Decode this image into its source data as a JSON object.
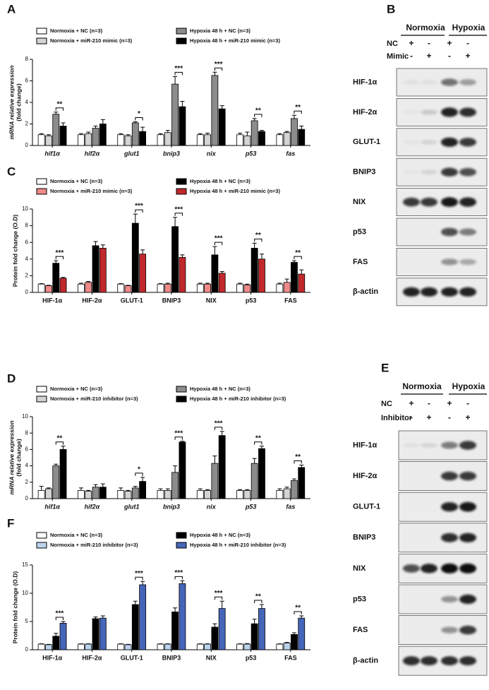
{
  "chart_data": [
    {
      "type": "bar",
      "panel": "A",
      "y_label": [
        "mRNA relative expression",
        "(fold change)"
      ],
      "categories": [
        "hif1α",
        "hif2α",
        "glut1",
        "bnip3",
        "nix",
        "p53",
        "fas"
      ],
      "series": [
        {
          "name": "Normoxia + NC (n=3)",
          "color": "#ffffff",
          "values": [
            1.0,
            1.0,
            1.0,
            1.0,
            1.0,
            1.0,
            1.0
          ],
          "errors": [
            0.1,
            0.1,
            0.1,
            0.1,
            0.1,
            0.15,
            0.1
          ]
        },
        {
          "name": "Normoxia + miR-210 mimic (n=3)",
          "color": "#d4d4d4",
          "values": [
            0.9,
            1.1,
            0.9,
            1.2,
            1.0,
            0.9,
            1.2
          ],
          "errors": [
            0.1,
            0.15,
            0.1,
            0.2,
            0.15,
            0.35,
            0.1
          ]
        },
        {
          "name": "Hypoxia 48 h + NC (n=3)",
          "color": "#8c8c8c",
          "values": [
            2.9,
            1.6,
            2.1,
            5.7,
            6.5,
            2.3,
            2.5
          ],
          "errors": [
            0.2,
            0.2,
            0.1,
            0.7,
            0.3,
            0.2,
            0.3
          ]
        },
        {
          "name": "Hypoxia 48 h + miR-210 mimic (n=3)",
          "color": "#000000",
          "values": [
            1.8,
            2.0,
            1.3,
            3.6,
            3.4,
            1.3,
            1.5
          ],
          "errors": [
            0.3,
            0.4,
            0.4,
            0.5,
            0.3,
            0.1,
            0.3
          ]
        }
      ],
      "significance": [
        "**",
        null,
        "*",
        "***",
        "***",
        "**",
        "**"
      ],
      "ylim": [
        0,
        8
      ],
      "yticks": [
        0,
        2,
        4,
        6,
        8
      ]
    },
    {
      "type": "bar",
      "panel": "C",
      "y_label": [
        "Protein fold change (O.D)"
      ],
      "categories": [
        "HIF-1α",
        "HIF-2α",
        "GLUT-1",
        "BNIP3",
        "NIX",
        "p53",
        "FAS"
      ],
      "series": [
        {
          "name": "Normoxia + NC (n=3)",
          "color": "#ffffff",
          "values": [
            1.0,
            1.0,
            1.0,
            1.0,
            1.0,
            1.0,
            1.0
          ],
          "errors": [
            0.05,
            0.1,
            0.05,
            0.05,
            0.1,
            0.1,
            0.1
          ]
        },
        {
          "name": "Normoxia + miR-210 mimic (n=3)",
          "color": "#f08a8a",
          "values": [
            0.8,
            1.2,
            0.8,
            1.0,
            1.0,
            0.9,
            1.2
          ],
          "errors": [
            0.05,
            0.1,
            0.05,
            0.1,
            0.1,
            0.1,
            0.4
          ]
        },
        {
          "name": "Hypoxia 48 h + NC (n=3)",
          "color": "#000000",
          "values": [
            3.5,
            5.6,
            8.3,
            7.9,
            4.5,
            5.3,
            3.6
          ],
          "errors": [
            0.3,
            0.5,
            1.1,
            1.1,
            1.0,
            0.6,
            0.2
          ]
        },
        {
          "name": "Hypoxia 48 h + miR-210 mimic (n=3)",
          "color": "#c0282c",
          "values": [
            1.7,
            5.3,
            4.6,
            4.2,
            2.3,
            4.0,
            2.2
          ],
          "errors": [
            0.1,
            0.4,
            0.5,
            0.3,
            0.2,
            0.6,
            0.5
          ]
        }
      ],
      "significance": [
        "***",
        null,
        "***",
        "***",
        "***",
        "**",
        "**"
      ],
      "ylim": [
        0,
        10
      ],
      "yticks": [
        0,
        2,
        4,
        6,
        8,
        10
      ]
    },
    {
      "type": "bar",
      "panel": "D",
      "y_label": [
        "mRNA relative expression",
        "(fold change)"
      ],
      "categories": [
        "hif1α",
        "hif2α",
        "glut1",
        "bnip3",
        "nix",
        "p53",
        "fas"
      ],
      "series": [
        {
          "name": "Normoxia + NC (n=3)",
          "color": "#ffffff",
          "values": [
            1.0,
            1.0,
            1.0,
            1.0,
            1.0,
            1.0,
            1.0
          ],
          "errors": [
            0.5,
            0.3,
            0.3,
            0.2,
            0.2,
            0.1,
            0.2
          ]
        },
        {
          "name": "Normoxia + miR-210 inhibitor (n=3)",
          "color": "#d4d4d4",
          "values": [
            1.2,
            0.9,
            0.9,
            1.0,
            1.0,
            1.0,
            1.2
          ],
          "errors": [
            0.1,
            0.1,
            0.1,
            0.2,
            0.1,
            0.1,
            0.2
          ]
        },
        {
          "name": "Hypoxia 48 h + NC (n=3)",
          "color": "#8c8c8c",
          "values": [
            4.0,
            1.4,
            1.3,
            3.2,
            4.3,
            4.3,
            2.2
          ],
          "errors": [
            0.2,
            0.3,
            0.2,
            0.8,
            0.9,
            0.6,
            0.2
          ]
        },
        {
          "name": "Hypoxia 48 h + miR-210 inhibitor (n=3)",
          "color": "#000000",
          "values": [
            6.0,
            1.4,
            2.1,
            6.9,
            7.7,
            6.1,
            3.8
          ],
          "errors": [
            0.4,
            0.4,
            0.5,
            0.1,
            0.5,
            0.3,
            0.3
          ]
        }
      ],
      "significance": [
        "**",
        null,
        "*",
        "***",
        "***",
        "**",
        "**"
      ],
      "ylim": [
        0,
        10
      ],
      "yticks": [
        0,
        2,
        4,
        6,
        8,
        10
      ]
    },
    {
      "type": "bar",
      "panel": "F",
      "y_label": [
        "Protein fold change (O.D)"
      ],
      "categories": [
        "HIF-1α",
        "HIF-2α",
        "GLUT-1",
        "BNIP3",
        "NIX",
        "p53",
        "FAS"
      ],
      "series": [
        {
          "name": "Normoxia + NC (n=3)",
          "color": "#ffffff",
          "values": [
            1.0,
            1.0,
            1.0,
            1.0,
            1.0,
            1.0,
            1.0
          ],
          "errors": [
            0.05,
            0.05,
            0.05,
            0.05,
            0.05,
            0.05,
            0.05
          ]
        },
        {
          "name": "Normoxia + miR-210 inhibitor (n=3)",
          "color": "#bcd3ec",
          "values": [
            0.9,
            1.0,
            0.9,
            1.0,
            1.0,
            1.0,
            1.2
          ],
          "errors": [
            0.05,
            0.05,
            0.05,
            0.05,
            0.05,
            0.1,
            0.1
          ]
        },
        {
          "name": "Hypoxia 48 h + NC (n=3)",
          "color": "#000000",
          "values": [
            2.4,
            5.5,
            8.0,
            6.7,
            4.0,
            4.6,
            2.7
          ],
          "errors": [
            0.5,
            0.3,
            0.6,
            0.7,
            0.6,
            0.8,
            0.3
          ]
        },
        {
          "name": "Hypoxia 48 h + miR-210 inhibitor (n=3)",
          "color": "#4565b8",
          "values": [
            4.7,
            5.6,
            11.5,
            11.7,
            7.3,
            7.3,
            5.6
          ],
          "errors": [
            0.3,
            0.4,
            0.6,
            0.5,
            1.3,
            0.7,
            0.4
          ]
        }
      ],
      "significance": [
        "***",
        null,
        "***",
        "***",
        "***",
        "**",
        "**"
      ],
      "ylim": [
        0,
        15
      ],
      "yticks": [
        0,
        5,
        10,
        15
      ]
    }
  ],
  "blots": [
    {
      "panel": "B",
      "groups": [
        "Normoxia",
        "Hypoxia"
      ],
      "conditions": [
        {
          "name": "NC",
          "signs": [
            "+",
            "-",
            "+",
            "-"
          ]
        },
        {
          "name": "Mimic",
          "signs": [
            "-",
            "+",
            "-",
            "+"
          ]
        }
      ],
      "proteins": [
        "HIF-1α",
        "HIF-2α",
        "GLUT-1",
        "BNIP3",
        "NIX",
        "p53",
        "FAS",
        "β-actin"
      ]
    },
    {
      "panel": "E",
      "groups": [
        "Normoxia",
        "Hypoxia"
      ],
      "conditions": [
        {
          "name": "NC",
          "signs": [
            "+",
            "-",
            "+",
            "-"
          ]
        },
        {
          "name": "Inhibitor",
          "signs": [
            "-",
            "+",
            "-",
            "+"
          ]
        }
      ],
      "proteins": [
        "HIF-1α",
        "HIF-2α",
        "GLUT-1",
        "BNIP3",
        "NIX",
        "p53",
        "FAS",
        "β-actin"
      ]
    }
  ]
}
